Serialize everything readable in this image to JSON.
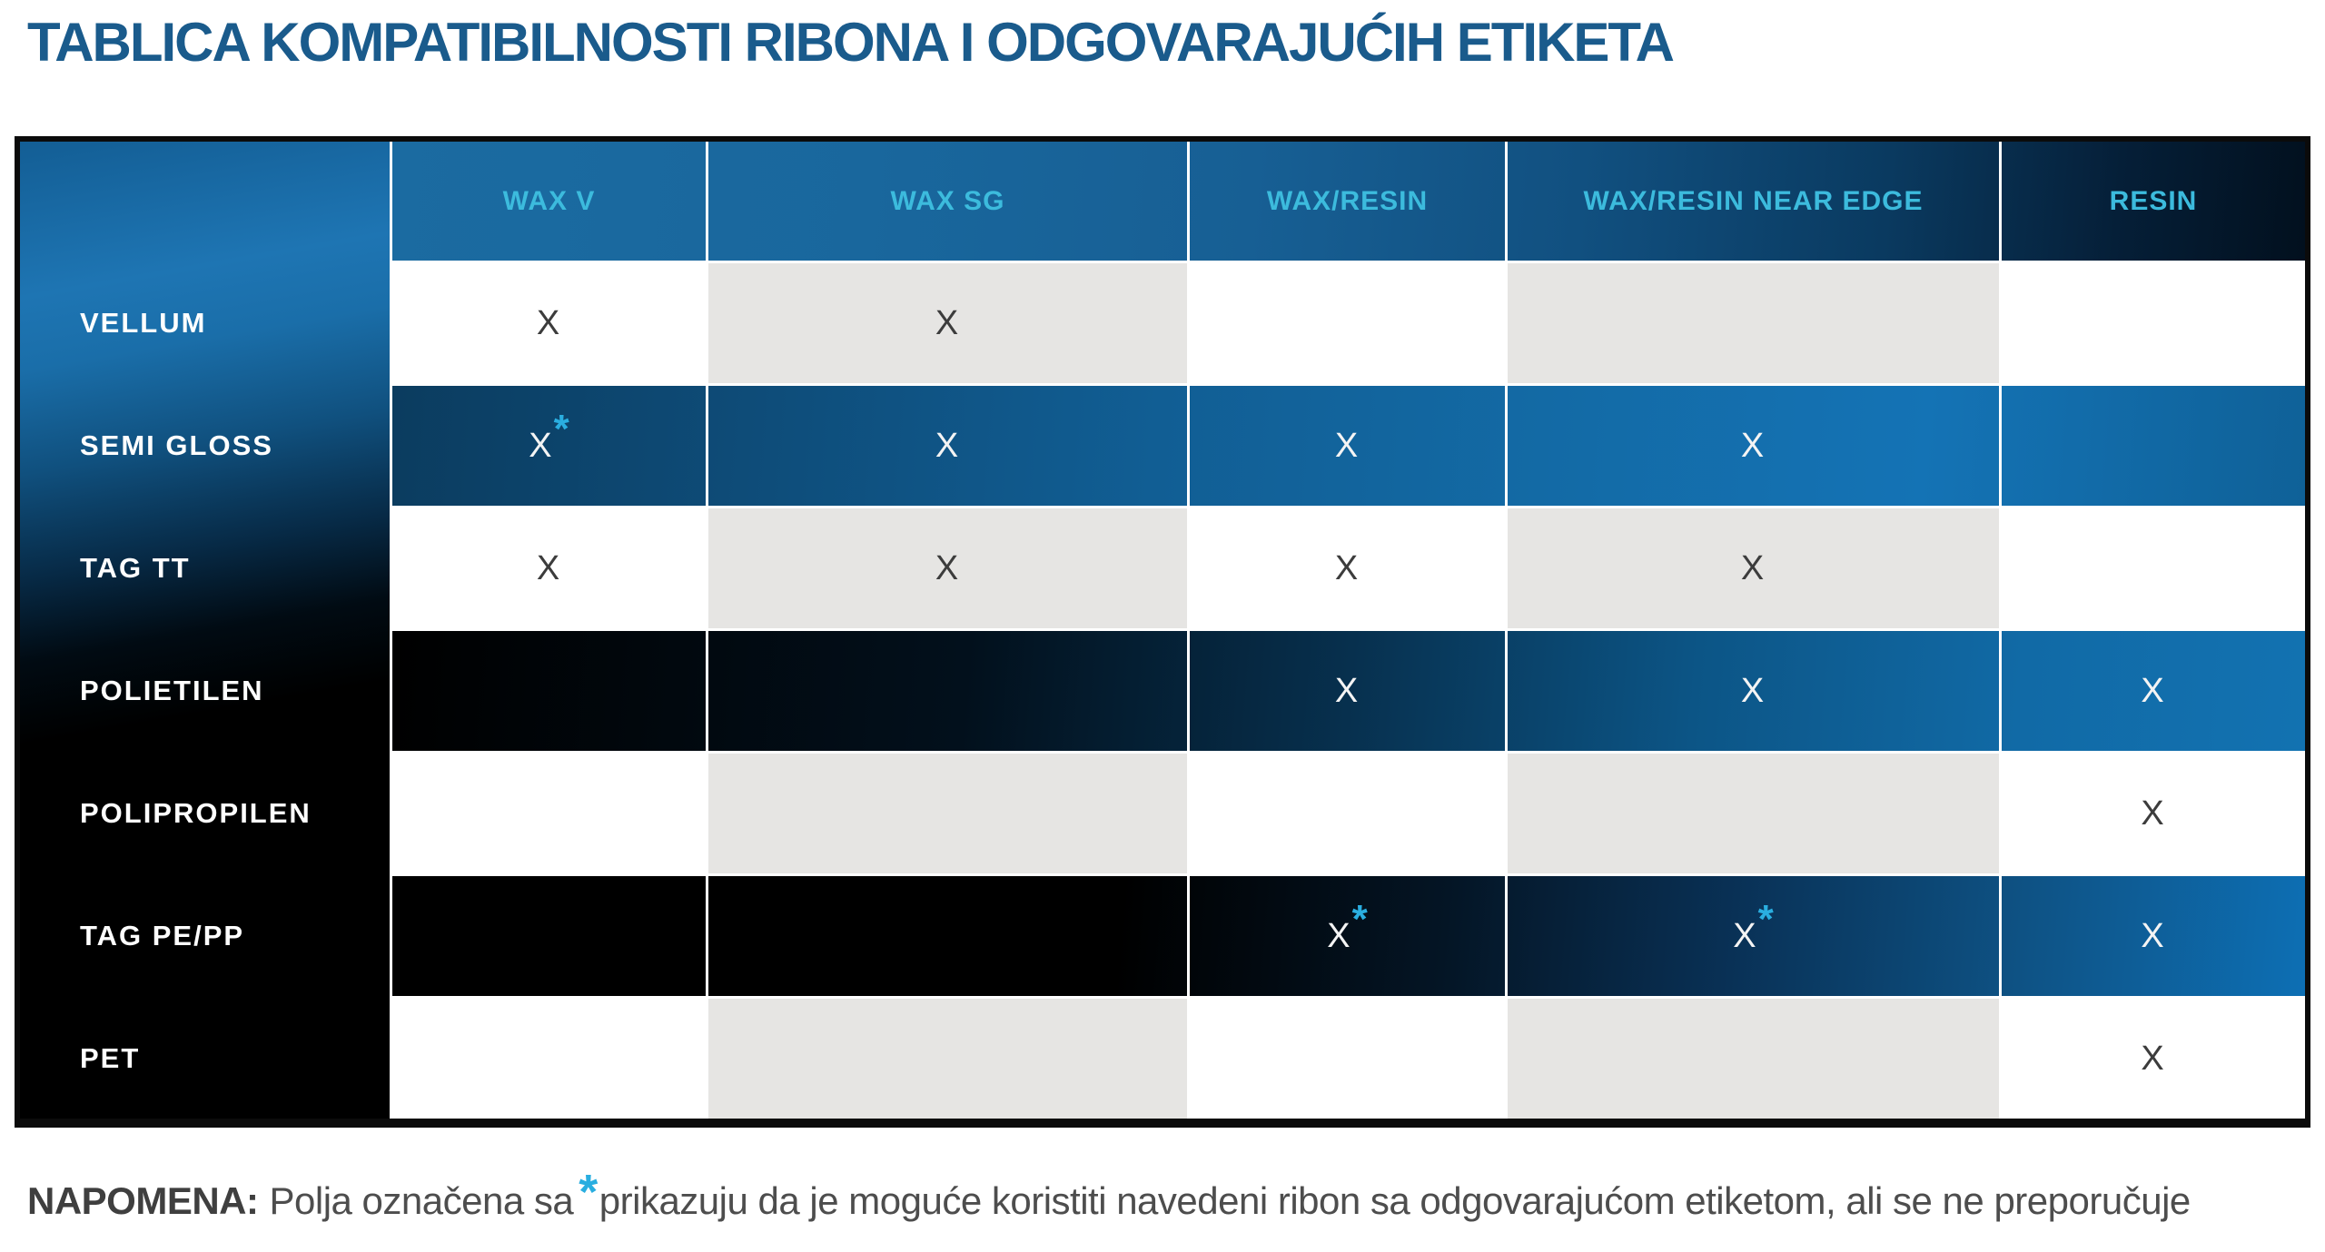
{
  "title": "TABLICA KOMPATIBILNOSTI RIBONA I ODGOVARAJUĆIH ETIKETA",
  "table": {
    "columns": [
      "",
      "WAX V",
      "WAX SG",
      "WAX/RESIN",
      "WAX/RESIN NEAR EDGE",
      "RESIN"
    ],
    "rows": [
      {
        "label": "VELLUM",
        "theme": "light",
        "cells": [
          {
            "x": "X",
            "star": ""
          },
          {
            "x": "X",
            "star": ""
          },
          {
            "x": "",
            "star": ""
          },
          {
            "x": "",
            "star": ""
          },
          {
            "x": "",
            "star": ""
          }
        ]
      },
      {
        "label": "SEMI GLOSS",
        "theme": "blue",
        "cells": [
          {
            "x": "X",
            "star": "*"
          },
          {
            "x": "X",
            "star": ""
          },
          {
            "x": "X",
            "star": ""
          },
          {
            "x": "X",
            "star": ""
          },
          {
            "x": "",
            "star": ""
          }
        ]
      },
      {
        "label": "TAG TT",
        "theme": "light",
        "cells": [
          {
            "x": "X",
            "star": ""
          },
          {
            "x": "X",
            "star": ""
          },
          {
            "x": "X",
            "star": ""
          },
          {
            "x": "X",
            "star": ""
          },
          {
            "x": "",
            "star": ""
          }
        ]
      },
      {
        "label": "POLIETILEN",
        "theme": "darkblue",
        "cells": [
          {
            "x": "",
            "star": ""
          },
          {
            "x": "",
            "star": ""
          },
          {
            "x": "X",
            "star": ""
          },
          {
            "x": "X",
            "star": ""
          },
          {
            "x": "X",
            "star": ""
          }
        ]
      },
      {
        "label": "POLIPROPILEN",
        "theme": "light",
        "cells": [
          {
            "x": "",
            "star": ""
          },
          {
            "x": "",
            "star": ""
          },
          {
            "x": "",
            "star": ""
          },
          {
            "x": "",
            "star": ""
          },
          {
            "x": "X",
            "star": ""
          }
        ]
      },
      {
        "label": "TAG PE/PP",
        "theme": "blackblue",
        "cells": [
          {
            "x": "",
            "star": ""
          },
          {
            "x": "",
            "star": ""
          },
          {
            "x": "X",
            "star": "*"
          },
          {
            "x": "X",
            "star": "*"
          },
          {
            "x": "X",
            "star": ""
          }
        ]
      },
      {
        "label": "PET",
        "theme": "light",
        "cells": [
          {
            "x": "",
            "star": ""
          },
          {
            "x": "",
            "star": ""
          },
          {
            "x": "",
            "star": ""
          },
          {
            "x": "",
            "star": ""
          },
          {
            "x": "X",
            "star": ""
          }
        ]
      }
    ]
  },
  "note": {
    "label": "NAPOMENA:",
    "before_star": "Polja označena sa",
    "star": "*",
    "after_star": "prikazuju da je moguće koristiti navedeni ribon sa odgovarajućom etiketom, ali se ne preporučuje"
  },
  "colors": {
    "title_blue": "#1A5B8C",
    "header_text_cyan": "#3CBBDD",
    "accent_star_cyan": "#29AEE0",
    "table_blue": "#1371B2",
    "cell_gray": "#E6E5E3",
    "black": "#000000"
  }
}
